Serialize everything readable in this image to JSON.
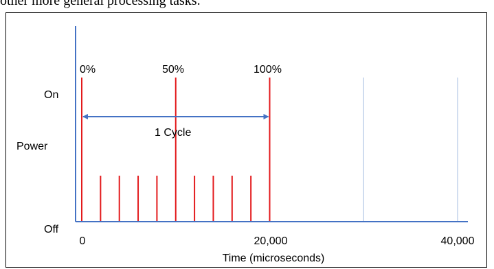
{
  "intro_text": "other more general processing tasks.",
  "y_axis": {
    "label": "Power",
    "tick_labels": [
      "On",
      "Off"
    ]
  },
  "x_axis": {
    "label": "Time (microseconds)",
    "tick_labels": [
      "0",
      "20,000",
      "40,000"
    ]
  },
  "percent_labels": [
    "0%",
    "50%",
    "100%"
  ],
  "cycle_label": "1 Cycle",
  "colors": {
    "pulse": "#e31a1c",
    "axis": "#4472c4",
    "gridline": "#b4c7e7",
    "text": "#000000"
  },
  "chart_data": {
    "type": "timing-diagram",
    "x_unit": "microseconds",
    "x_range": [
      0,
      40000
    ],
    "full_pulses_at": [
      0,
      10000,
      20000
    ],
    "short_pulses_at": [
      2000,
      4000,
      6000,
      8000,
      12000,
      14000,
      16000,
      18000
    ],
    "cycle_span": [
      0,
      20000
    ],
    "faint_gridlines_at": [
      30000,
      40000
    ]
  }
}
